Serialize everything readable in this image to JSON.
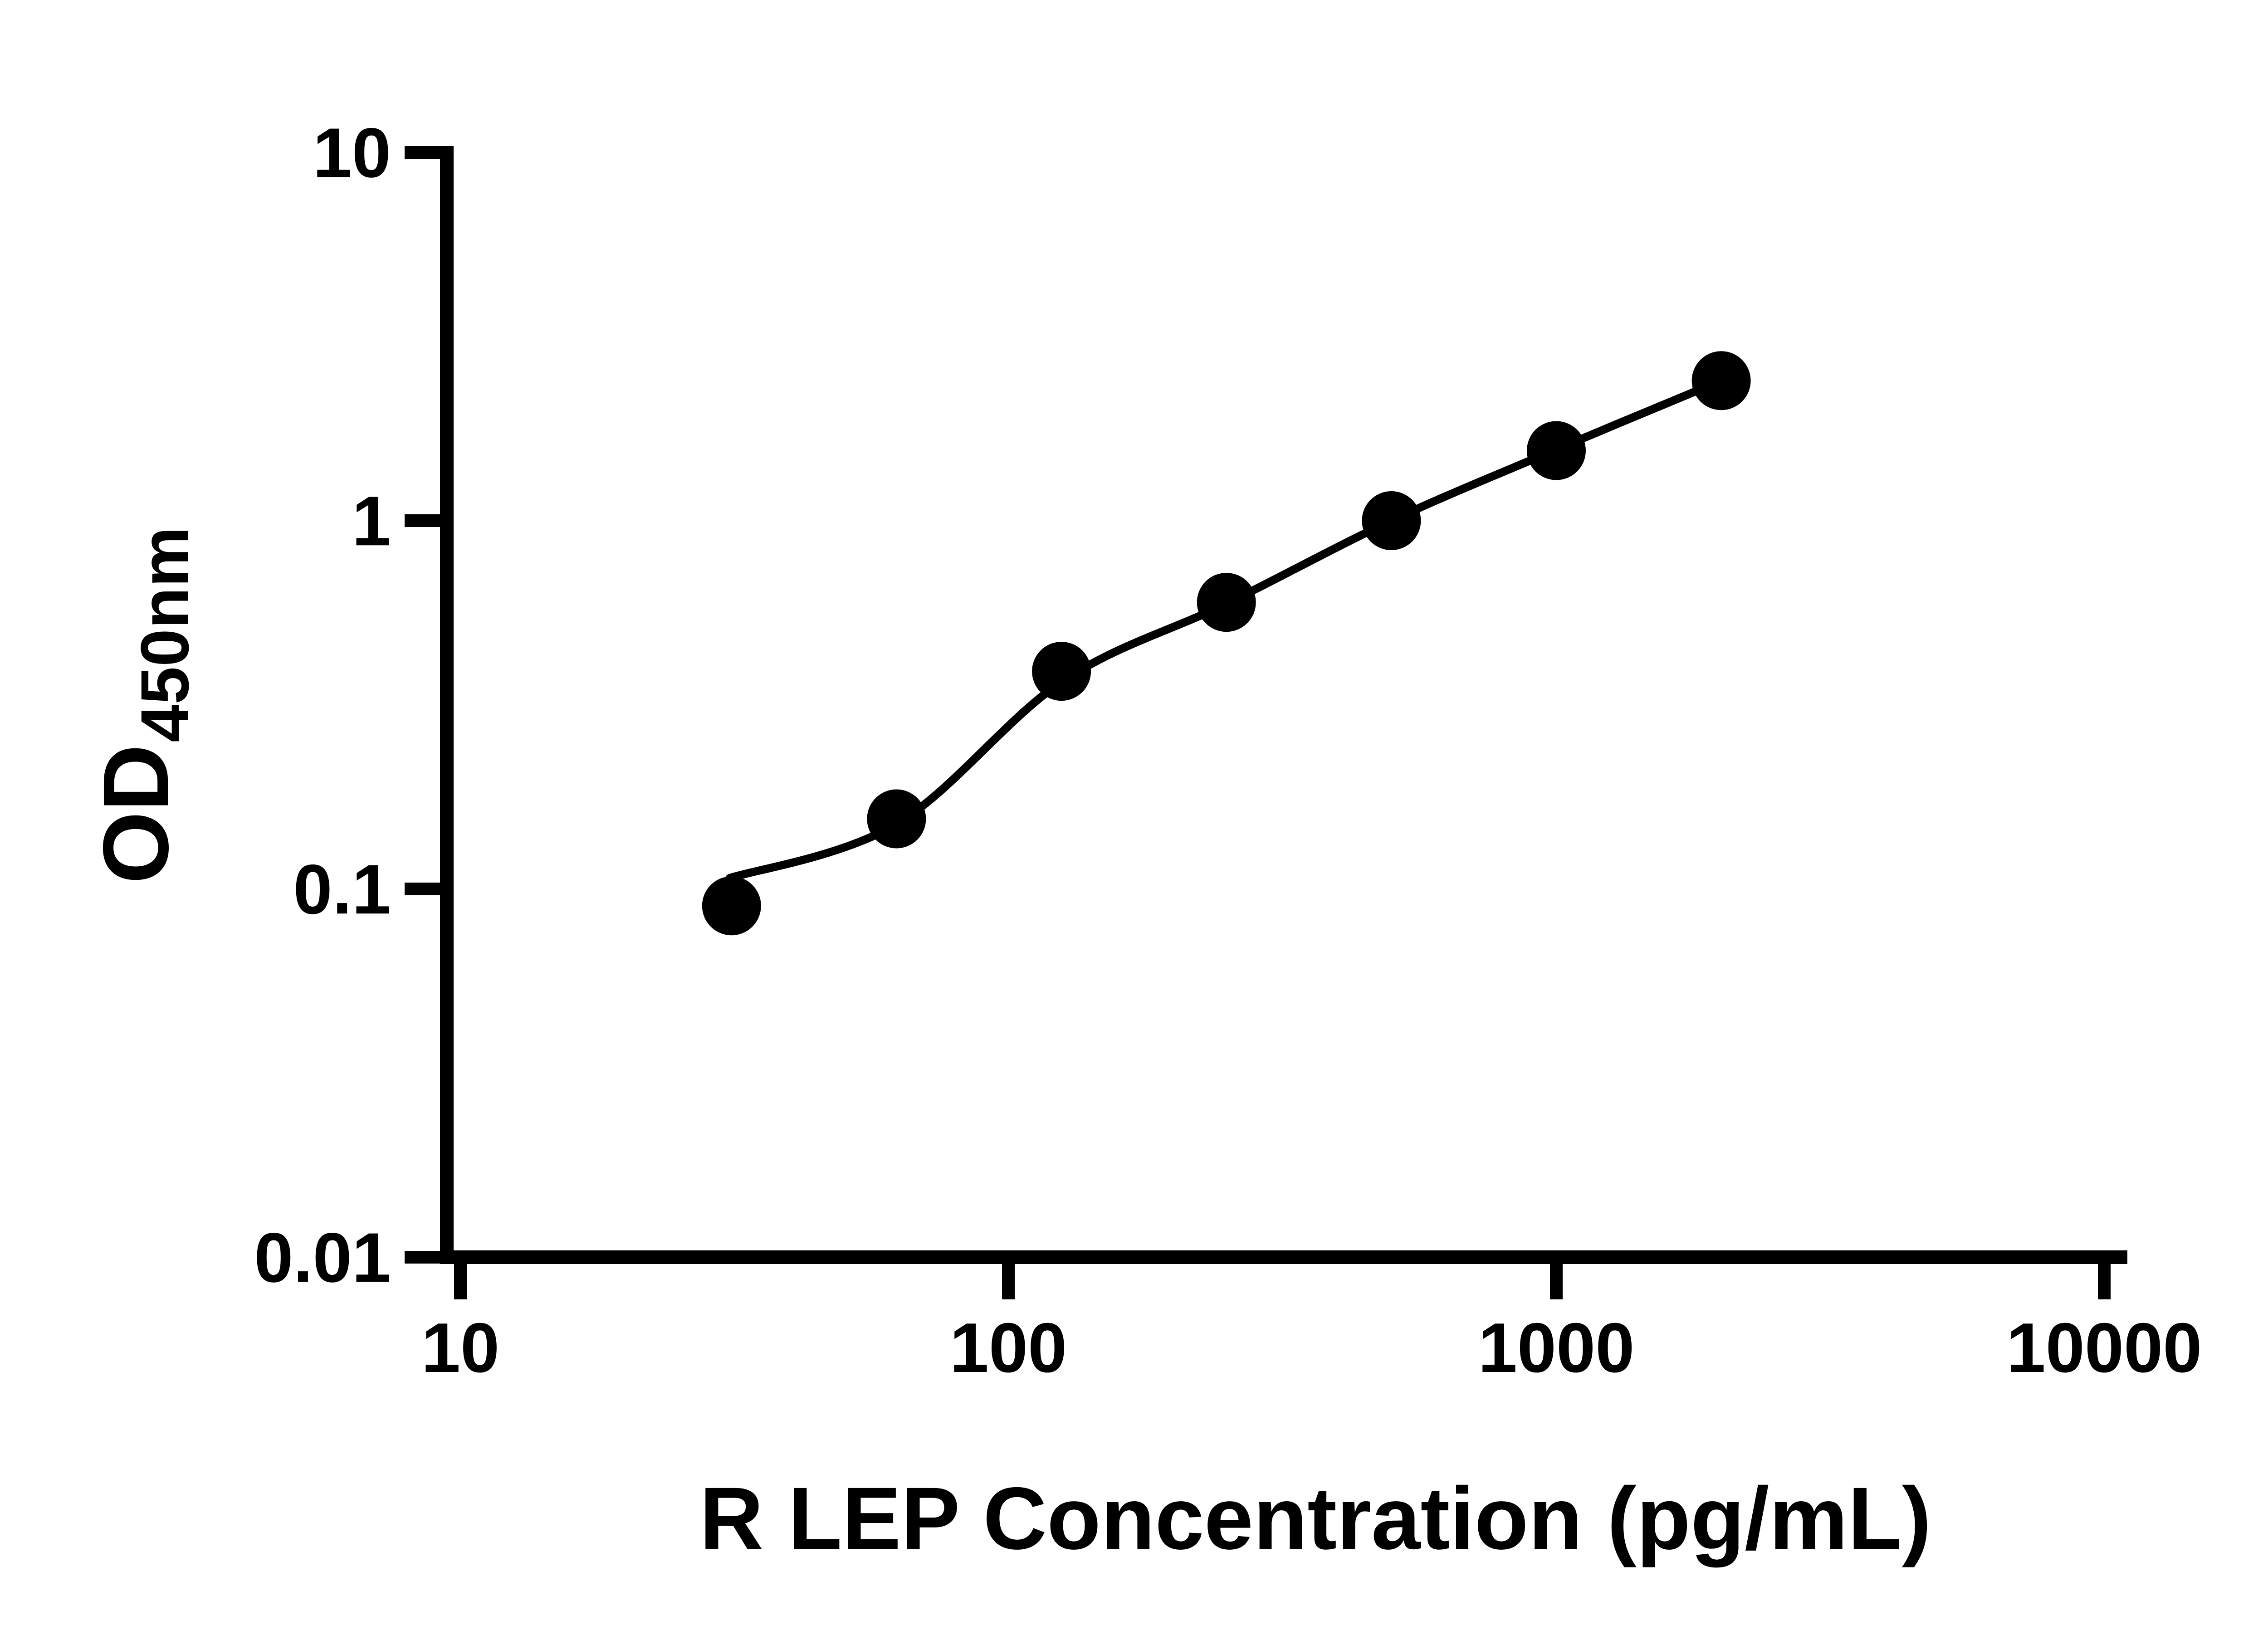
{
  "figure": {
    "background": "#ffffff",
    "foreground": "#000000"
  },
  "chart_data": {
    "type": "scatter",
    "title": "",
    "xlabel": "R LEP Concentration (pg/mL)",
    "ylabel_main": "OD",
    "ylabel_sub": "450nm",
    "x_scale": "log",
    "y_scale": "log",
    "xlim": [
      10,
      10000
    ],
    "ylim": [
      0.01,
      10
    ],
    "x_tick_values": [
      10,
      100,
      1000,
      10000
    ],
    "x_tick_labels": [
      "10",
      "100",
      "1000",
      "10000"
    ],
    "y_tick_values": [
      0.01,
      0.1,
      1,
      10
    ],
    "y_tick_labels": [
      "0.01",
      "0.1",
      "1",
      "10"
    ],
    "grid": false,
    "legend": false,
    "series": [
      {
        "name": "standard-points",
        "type": "scatter",
        "marker": "filled-circle",
        "color": "#000000",
        "x": [
          31.25,
          62.5,
          125,
          250,
          500,
          1000,
          2000
        ],
        "y": [
          0.09,
          0.155,
          0.39,
          0.6,
          1.0,
          1.55,
          2.4
        ]
      },
      {
        "name": "fitted-curve",
        "type": "line",
        "color": "#000000",
        "x": [
          31,
          62.5,
          125,
          250,
          500,
          1000,
          2000
        ],
        "y": [
          0.107,
          0.15,
          0.365,
          0.595,
          1.0,
          1.56,
          2.4
        ]
      }
    ]
  }
}
